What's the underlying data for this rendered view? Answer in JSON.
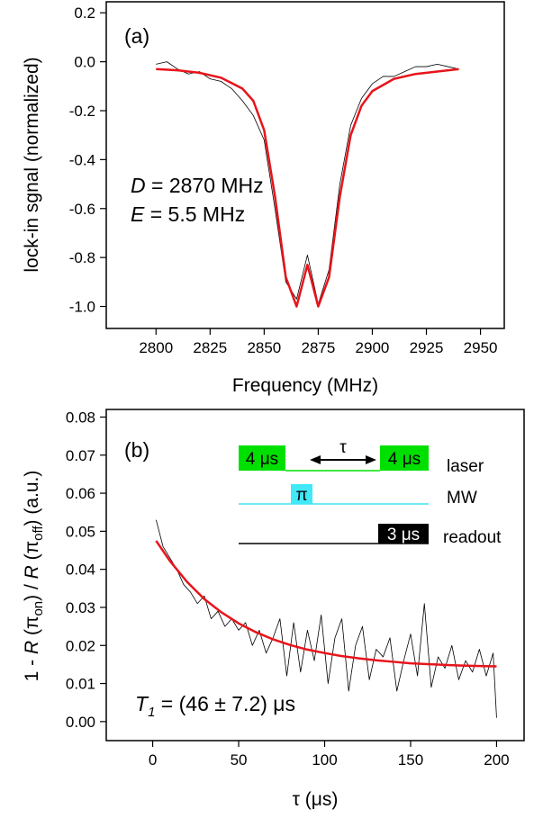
{
  "chart_data": [
    {
      "type": "line",
      "panel_label": "(a)",
      "x_label": "Frequency (MHz)",
      "y_label": "lock-in sgnal (normalized)",
      "annotations": [
        {
          "symbol": "D",
          "text": " = 2870 MHz"
        },
        {
          "symbol": "E",
          "text": " = 5.5 MHz"
        }
      ],
      "xlim": [
        2777,
        2961
      ],
      "xticks": [
        2800,
        2825,
        2850,
        2875,
        2900,
        2925,
        2950
      ],
      "ylim": [
        -1.09,
        0.245
      ],
      "yticks": [
        0.2,
        {
          "value": 0,
          "label": "0.0"
        },
        -0.2,
        -0.4,
        -0.6,
        -0.8,
        {
          "value": -1,
          "label": "-1.0"
        }
      ],
      "series": [
        {
          "color": "#000000",
          "line_width": 0.8,
          "x": [
            2800,
            2805,
            2810,
            2815,
            2820,
            2825,
            2830,
            2835,
            2840,
            2845,
            2850,
            2855,
            2860,
            2865,
            2870,
            2875,
            2880,
            2885,
            2890,
            2895,
            2900,
            2905,
            2910,
            2915,
            2920,
            2925,
            2930,
            2935,
            2940
          ],
          "values": [
            -0.01,
            0.0,
            -0.03,
            -0.05,
            -0.04,
            -0.07,
            -0.08,
            -0.11,
            -0.16,
            -0.22,
            -0.32,
            -0.6,
            -0.9,
            -0.97,
            -0.79,
            -0.99,
            -0.85,
            -0.5,
            -0.26,
            -0.15,
            -0.09,
            -0.06,
            -0.06,
            -0.04,
            -0.02,
            -0.02,
            -0.01,
            -0.02,
            -0.03
          ]
        },
        {
          "color": "#e8141b",
          "line_width": 2.5,
          "x": [
            2800,
            2810,
            2820,
            2830,
            2840,
            2845,
            2850,
            2855,
            2860,
            2865,
            2870,
            2875,
            2880,
            2885,
            2890,
            2895,
            2900,
            2910,
            2920,
            2930,
            2940
          ],
          "values": [
            -0.03,
            -0.035,
            -0.045,
            -0.065,
            -0.11,
            -0.16,
            -0.28,
            -0.55,
            -0.88,
            -1.0,
            -0.83,
            -1.0,
            -0.88,
            -0.55,
            -0.3,
            -0.18,
            -0.12,
            -0.07,
            -0.05,
            -0.04,
            -0.03
          ]
        }
      ]
    },
    {
      "type": "line",
      "panel_label": "(b)",
      "x_label": "τ (μs)",
      "y_label_parts": [
        "1 - ",
        "R",
        " (π",
        "on",
        ") / ",
        "R",
        " (π",
        "off",
        ") (a.u.)"
      ],
      "fit_result": {
        "symbol": "T",
        "subscript": "1",
        "text": " = (46 ± 7.2) μs"
      },
      "inset": {
        "laser": {
          "pulses": [
            "4 μs",
            "4 μs"
          ],
          "delay": "τ",
          "label": "laser"
        },
        "mw": {
          "pulses": [
            "π"
          ],
          "label": "MW"
        },
        "readout": {
          "pulses": [
            "3 μs"
          ],
          "label": "readout"
        }
      },
      "xlim": [
        -27,
        216
      ],
      "xticks": [
        0,
        50,
        100,
        150,
        200
      ],
      "ylim": [
        -0.005,
        0.082
      ],
      "yticks": [
        {
          "value": 0,
          "label": "0.00"
        },
        0.01,
        0.02,
        0.03,
        0.04,
        0.05,
        0.06,
        0.07,
        0.08
      ],
      "series": [
        {
          "color": "#000000",
          "line_width": 0.8,
          "x": [
            2,
            6,
            10,
            14,
            18,
            22,
            26,
            30,
            34,
            38,
            42,
            46,
            50,
            54,
            58,
            62,
            66,
            70,
            74,
            78,
            82,
            86,
            90,
            94,
            98,
            102,
            106,
            110,
            114,
            118,
            122,
            126,
            130,
            134,
            138,
            142,
            146,
            150,
            154,
            158,
            162,
            166,
            170,
            174,
            178,
            182,
            186,
            190,
            194,
            198,
            200
          ],
          "values": [
            0.053,
            0.046,
            0.043,
            0.04,
            0.036,
            0.034,
            0.031,
            0.033,
            0.027,
            0.029,
            0.025,
            0.027,
            0.024,
            0.026,
            0.02,
            0.024,
            0.018,
            0.022,
            0.027,
            0.012,
            0.026,
            0.013,
            0.024,
            0.016,
            0.028,
            0.01,
            0.022,
            0.027,
            0.008,
            0.02,
            0.025,
            0.011,
            0.019,
            0.017,
            0.022,
            0.008,
            0.016,
            0.023,
            0.012,
            0.031,
            0.009,
            0.017,
            0.014,
            0.02,
            0.011,
            0.016,
            0.013,
            0.019,
            0.012,
            0.018,
            0.001
          ]
        },
        {
          "color": "#e8141b",
          "line_width": 2.5,
          "x": [
            2,
            10,
            20,
            30,
            40,
            50,
            60,
            70,
            80,
            90,
            100,
            110,
            120,
            130,
            140,
            150,
            160,
            170,
            180,
            190,
            200
          ],
          "values": [
            0.0475,
            0.0422,
            0.0367,
            0.0322,
            0.0287,
            0.0258,
            0.0235,
            0.0216,
            0.0201,
            0.0189,
            0.018,
            0.0172,
            0.0166,
            0.0161,
            0.0157,
            0.0153,
            0.0151,
            0.0149,
            0.0147,
            0.0146,
            0.0145
          ]
        }
      ]
    }
  ]
}
